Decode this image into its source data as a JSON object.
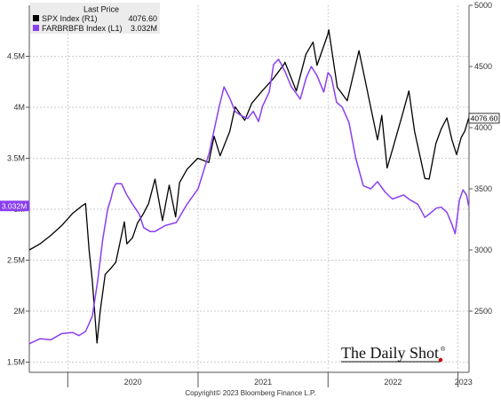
{
  "chart_data": {
    "type": "line",
    "legend": {
      "header": "Last Price",
      "placement": "top-left",
      "entries": [
        {
          "label": "SPX Index  (R1)",
          "value": "4076.60",
          "color": "#000000"
        },
        {
          "label": "FARBRBFB Index  (L1)",
          "value": "3.032M",
          "color": "#8a3ff0"
        }
      ]
    },
    "x_axis": {
      "range": [
        "2019-09-15",
        "2023-02-01"
      ],
      "year_labels": [
        "2020",
        "2021",
        "2022",
        "2023"
      ],
      "year_boundaries": [
        "2020-01-01",
        "2021-01-01",
        "2022-01-01",
        "2023-01-01"
      ]
    },
    "left_axis": {
      "range": [
        1400000,
        5000000
      ],
      "ticks": [
        1500000,
        2000000,
        2500000,
        3000000,
        3500000,
        4000000,
        4500000
      ],
      "tick_labels": [
        "1.5M",
        "2M",
        "2.5M",
        "3M",
        "3.5M",
        "4M",
        "4.5M"
      ]
    },
    "right_axis": {
      "range": [
        2000,
        5000
      ],
      "ticks": [
        2500,
        3000,
        3500,
        4000,
        4500,
        5000
      ],
      "tick_labels": [
        "2500",
        "3000",
        "3500",
        "4000",
        "4500",
        "5000"
      ]
    },
    "series": [
      {
        "name": "SPX Index",
        "axis": "right",
        "color": "#000000",
        "last_label": "4076.60",
        "points": [
          [
            "2019-09-15",
            3000
          ],
          [
            "2019-10-15",
            3050
          ],
          [
            "2019-11-15",
            3120
          ],
          [
            "2019-12-15",
            3200
          ],
          [
            "2020-01-15",
            3300
          ],
          [
            "2020-02-10",
            3360
          ],
          [
            "2020-02-20",
            3380
          ],
          [
            "2020-03-01",
            3000
          ],
          [
            "2020-03-10",
            2750
          ],
          [
            "2020-03-23",
            2240
          ],
          [
            "2020-04-01",
            2500
          ],
          [
            "2020-04-15",
            2800
          ],
          [
            "2020-05-01",
            2850
          ],
          [
            "2020-05-15",
            2900
          ],
          [
            "2020-06-08",
            3230
          ],
          [
            "2020-06-15",
            3050
          ],
          [
            "2020-07-01",
            3100
          ],
          [
            "2020-07-15",
            3220
          ],
          [
            "2020-08-01",
            3300
          ],
          [
            "2020-08-15",
            3380
          ],
          [
            "2020-09-02",
            3580
          ],
          [
            "2020-09-23",
            3240
          ],
          [
            "2020-10-12",
            3530
          ],
          [
            "2020-10-30",
            3270
          ],
          [
            "2020-11-10",
            3550
          ],
          [
            "2020-12-01",
            3660
          ],
          [
            "2020-12-31",
            3750
          ],
          [
            "2021-01-31",
            3715
          ],
          [
            "2021-02-15",
            3930
          ],
          [
            "2021-03-04",
            3770
          ],
          [
            "2021-03-31",
            3970
          ],
          [
            "2021-04-15",
            4170
          ],
          [
            "2021-05-12",
            4060
          ],
          [
            "2021-06-01",
            4200
          ],
          [
            "2021-06-30",
            4300
          ],
          [
            "2021-07-31",
            4400
          ],
          [
            "2021-08-31",
            4520
          ],
          [
            "2021-09-02",
            4535
          ],
          [
            "2021-10-04",
            4300
          ],
          [
            "2021-10-31",
            4600
          ],
          [
            "2021-11-20",
            4700
          ],
          [
            "2021-12-01",
            4510
          ],
          [
            "2021-12-31",
            4760
          ],
          [
            "2022-01-03",
            4800
          ],
          [
            "2022-01-27",
            4330
          ],
          [
            "2022-02-24",
            4220
          ],
          [
            "2022-03-29",
            4630
          ],
          [
            "2022-04-15",
            4390
          ],
          [
            "2022-05-02",
            4150
          ],
          [
            "2022-05-20",
            3900
          ],
          [
            "2022-06-01",
            4100
          ],
          [
            "2022-06-16",
            3670
          ],
          [
            "2022-07-01",
            3820
          ],
          [
            "2022-07-31",
            4130
          ],
          [
            "2022-08-16",
            4300
          ],
          [
            "2022-09-01",
            3970
          ],
          [
            "2022-09-30",
            3585
          ],
          [
            "2022-10-12",
            3580
          ],
          [
            "2022-10-31",
            3870
          ],
          [
            "2022-11-15",
            3990
          ],
          [
            "2022-12-01",
            4080
          ],
          [
            "2022-12-15",
            3900
          ],
          [
            "2022-12-28",
            3780
          ],
          [
            "2023-01-10",
            3920
          ],
          [
            "2023-01-20",
            3970
          ],
          [
            "2023-01-31",
            4076.6
          ]
        ]
      },
      {
        "name": "FARBRBFB Index",
        "axis": "left",
        "color": "#8a3ff0",
        "last_label": "3.032M",
        "points": [
          [
            "2019-09-15",
            1680000
          ],
          [
            "2019-10-15",
            1730000
          ],
          [
            "2019-11-15",
            1720000
          ],
          [
            "2019-12-15",
            1780000
          ],
          [
            "2020-01-15",
            1790000
          ],
          [
            "2020-02-01",
            1760000
          ],
          [
            "2020-02-20",
            1800000
          ],
          [
            "2020-03-10",
            1950000
          ],
          [
            "2020-03-25",
            2300000
          ],
          [
            "2020-04-08",
            2700000
          ],
          [
            "2020-04-22",
            3000000
          ],
          [
            "2020-05-01",
            3100000
          ],
          [
            "2020-05-08",
            3200000
          ],
          [
            "2020-05-15",
            3250000
          ],
          [
            "2020-05-31",
            3250000
          ],
          [
            "2020-06-15",
            3140000
          ],
          [
            "2020-07-01",
            3050000
          ],
          [
            "2020-07-20",
            2950000
          ],
          [
            "2020-08-01",
            2820000
          ],
          [
            "2020-08-20",
            2780000
          ],
          [
            "2020-09-01",
            2780000
          ],
          [
            "2020-10-01",
            2840000
          ],
          [
            "2020-11-01",
            2870000
          ],
          [
            "2020-12-01",
            3050000
          ],
          [
            "2021-01-01",
            3200000
          ],
          [
            "2021-02-01",
            3550000
          ],
          [
            "2021-03-01",
            4000000
          ],
          [
            "2021-03-15",
            4200000
          ],
          [
            "2021-04-01",
            4080000
          ],
          [
            "2021-04-15",
            3960000
          ],
          [
            "2021-05-01",
            3920000
          ],
          [
            "2021-05-20",
            3890000
          ],
          [
            "2021-06-05",
            3960000
          ],
          [
            "2021-06-20",
            3860000
          ],
          [
            "2021-07-01",
            4010000
          ],
          [
            "2021-07-20",
            4150000
          ],
          [
            "2021-08-01",
            4420000
          ],
          [
            "2021-08-15",
            4470000
          ],
          [
            "2021-09-01",
            4360000
          ],
          [
            "2021-09-20",
            4200000
          ],
          [
            "2021-10-01",
            4150000
          ],
          [
            "2021-10-15",
            4080000
          ],
          [
            "2021-11-01",
            4290000
          ],
          [
            "2021-11-15",
            4400000
          ],
          [
            "2021-12-01",
            4310000
          ],
          [
            "2021-12-20",
            4150000
          ],
          [
            "2022-01-01",
            4340000
          ],
          [
            "2022-01-10",
            4300000
          ],
          [
            "2022-01-25",
            4050000
          ],
          [
            "2022-02-10",
            4000000
          ],
          [
            "2022-03-01",
            3850000
          ],
          [
            "2022-03-20",
            3500000
          ],
          [
            "2022-04-10",
            3230000
          ],
          [
            "2022-05-01",
            3200000
          ],
          [
            "2022-05-20",
            3270000
          ],
          [
            "2022-06-10",
            3170000
          ],
          [
            "2022-07-01",
            3100000
          ],
          [
            "2022-08-01",
            3140000
          ],
          [
            "2022-08-20",
            3090000
          ],
          [
            "2022-09-10",
            3050000
          ],
          [
            "2022-09-30",
            2920000
          ],
          [
            "2022-10-15",
            2960000
          ],
          [
            "2022-11-01",
            3010000
          ],
          [
            "2022-11-15",
            3020000
          ],
          [
            "2022-12-01",
            2970000
          ],
          [
            "2022-12-15",
            2850000
          ],
          [
            "2022-12-24",
            2760000
          ],
          [
            "2023-01-05",
            3090000
          ],
          [
            "2023-01-15",
            3190000
          ],
          [
            "2023-01-25",
            3140000
          ],
          [
            "2023-01-31",
            3032000
          ]
        ]
      }
    ]
  },
  "footer": {
    "copyright": "Copyright© 2023 Bloomberg Finance L.P.",
    "brand": "The Daily Shot",
    "brand_mark": "®"
  },
  "colors": {
    "spx": "#000000",
    "farbrbfb": "#8a3ff0",
    "legend_bg": "#ececec",
    "grid": "#bfbfbf",
    "brand_accent": "#cc0000"
  }
}
